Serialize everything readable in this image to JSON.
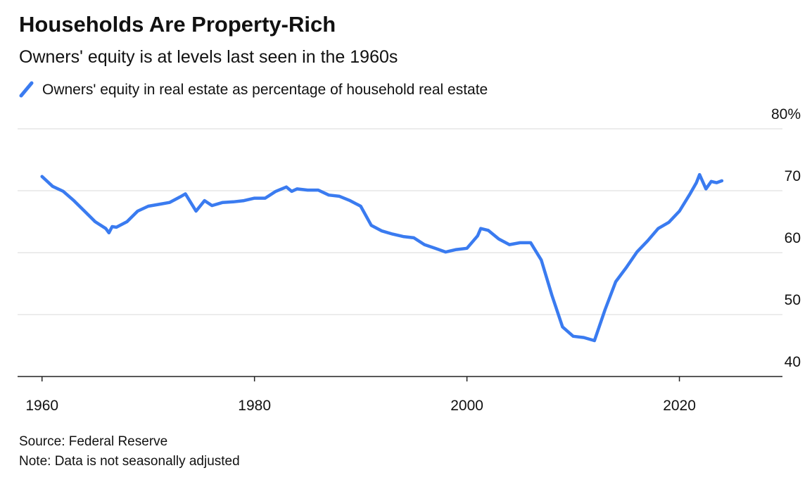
{
  "chart_data": {
    "type": "line",
    "title": "Households Are Property-Rich",
    "subtitle": "Owners' equity is at levels last seen in the 1960s",
    "source": "Source: Federal Reserve",
    "note": "Note: Data is not seasonally adjusted",
    "x": [
      1960,
      1961,
      1962,
      1963,
      1964,
      1965,
      1966,
      1966.3,
      1966.6,
      1967,
      1968,
      1969,
      1970,
      1971,
      1972,
      1973,
      1973.5,
      1974.5,
      1975.3,
      1976,
      1977,
      1978,
      1979,
      1980,
      1981,
      1982,
      1983,
      1983.5,
      1984,
      1985,
      1986,
      1987,
      1988,
      1989,
      1990,
      1991,
      1992,
      1993,
      1994,
      1995,
      1996,
      1997,
      1998,
      1999,
      2000,
      2001,
      2001.3,
      2002,
      2003,
      2004,
      2005,
      2006,
      2007,
      2008,
      2009,
      2010,
      2011,
      2012,
      2013,
      2014,
      2015,
      2016,
      2017,
      2018,
      2019,
      2020,
      2021,
      2021.6,
      2021.9,
      2022.5,
      2023,
      2023.5,
      2024
    ],
    "series": [
      {
        "name": "Owners' equity in real estate as percentage of household real estate",
        "color": "#3a7bf0",
        "values": [
          72.3,
          70.7,
          69.9,
          68.4,
          66.7,
          65.0,
          63.9,
          63.2,
          64.2,
          64.1,
          65.0,
          66.7,
          67.5,
          67.8,
          68.1,
          69.0,
          69.5,
          66.7,
          68.4,
          67.6,
          68.1,
          68.2,
          68.4,
          68.8,
          68.8,
          69.9,
          70.6,
          69.9,
          70.3,
          70.1,
          70.1,
          69.3,
          69.1,
          68.4,
          67.5,
          64.4,
          63.5,
          63.0,
          62.6,
          62.4,
          61.3,
          60.7,
          60.1,
          60.5,
          60.7,
          62.7,
          63.9,
          63.6,
          62.2,
          61.3,
          61.6,
          61.6,
          58.8,
          53.1,
          48.0,
          46.5,
          46.3,
          45.8,
          50.8,
          55.3,
          57.6,
          60.1,
          61.9,
          63.9,
          64.9,
          66.7,
          69.5,
          71.3,
          72.6,
          70.3,
          71.5,
          71.3,
          71.6
        ]
      }
    ],
    "xlim": [
      1957.7,
      2029.7
    ],
    "xticks": [
      1960,
      1980,
      2000,
      2020
    ],
    "ylim": [
      40,
      80
    ],
    "yticks": [
      40,
      50,
      60,
      70,
      {
        "value": 80,
        "label": "80%"
      }
    ],
    "grid": true
  }
}
